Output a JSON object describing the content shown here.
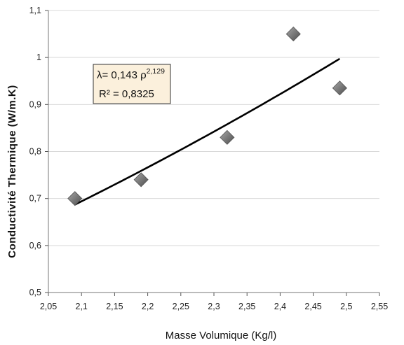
{
  "chart_data": {
    "type": "scatter",
    "xlabel": "Masse Volumique (Kg/l)",
    "ylabel": "Conductivité Thermique (W/m.K)",
    "xlim": [
      2.05,
      2.55
    ],
    "ylim": [
      0.5,
      1.1
    ],
    "x_ticks": [
      "2,05",
      "2,1",
      "2,15",
      "2,2",
      "2,25",
      "2,3",
      "2,35",
      "2,4",
      "2,45",
      "2,5",
      "2,55"
    ],
    "x_tick_values": [
      2.05,
      2.1,
      2.15,
      2.2,
      2.25,
      2.3,
      2.35,
      2.4,
      2.45,
      2.5,
      2.55
    ],
    "y_ticks": [
      "0,5",
      "0,6",
      "0,7",
      "0,8",
      "0,9",
      "1",
      "1,1"
    ],
    "y_tick_values": [
      0.5,
      0.6,
      0.7,
      0.8,
      0.9,
      1.0,
      1.1
    ],
    "points": [
      {
        "x": 2.09,
        "y": 0.7
      },
      {
        "x": 2.19,
        "y": 0.74
      },
      {
        "x": 2.32,
        "y": 0.83
      },
      {
        "x": 2.42,
        "y": 1.05
      },
      {
        "x": 2.49,
        "y": 0.935
      }
    ],
    "trendline": {
      "type": "power",
      "coefficient": 0.143,
      "exponent": 2.129,
      "x_range": [
        2.09,
        2.49
      ],
      "equation_prefix": "λ= 0,143 ρ",
      "equation_exponent": "2,129",
      "r2_label": "R² = 0,8325"
    },
    "grid": "horizontal",
    "legend": "none",
    "colors": {
      "marker": "#7a7a7a",
      "trendline": "#000000",
      "annotation_fill": "#fbf0dc",
      "gridline": "#d9d9d9"
    }
  }
}
